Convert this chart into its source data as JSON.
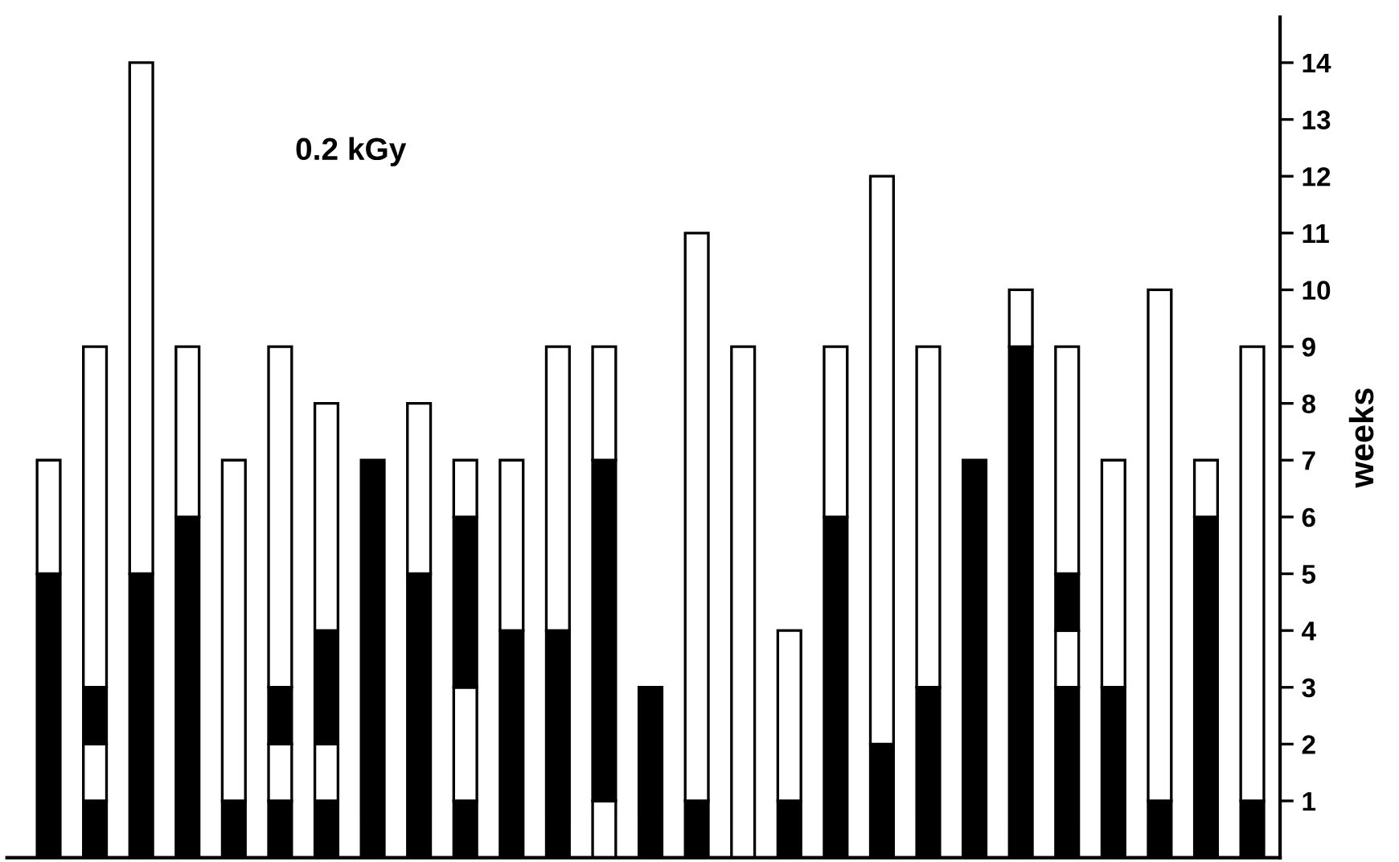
{
  "chart_data": {
    "type": "bar",
    "stacked": true,
    "categories": [
      null,
      null,
      null,
      null,
      null,
      null,
      null,
      null,
      null,
      null,
      null,
      null,
      null,
      null,
      null,
      null,
      null,
      null,
      null,
      null,
      null,
      null,
      null,
      null,
      null,
      null,
      null
    ],
    "series": [
      {
        "color": "#000000",
        "values": [
          5,
          1,
          5,
          6,
          1,
          1,
          1,
          7,
          5,
          1,
          4,
          4,
          null,
          3,
          1,
          null,
          1,
          6,
          2,
          3,
          7,
          9,
          3,
          3,
          1,
          6,
          1
        ]
      },
      {
        "color": "#ffffff",
        "values": [
          2,
          1,
          9,
          3,
          6,
          1,
          1,
          null,
          3,
          2,
          3,
          5,
          1,
          null,
          10,
          9,
          3,
          3,
          10,
          6,
          null,
          1,
          1,
          4,
          9,
          1,
          8
        ]
      },
      {
        "color": "#000000",
        "values": [
          null,
          1,
          null,
          null,
          null,
          1,
          2,
          null,
          null,
          3,
          null,
          null,
          6,
          null,
          null,
          null,
          null,
          null,
          null,
          null,
          null,
          null,
          1,
          null,
          null,
          null,
          null
        ]
      },
      {
        "color": "#ffffff",
        "values": [
          null,
          6,
          null,
          null,
          null,
          6,
          4,
          null,
          null,
          1,
          null,
          null,
          2,
          null,
          null,
          null,
          null,
          null,
          null,
          null,
          null,
          null,
          4,
          null,
          null,
          null,
          null
        ]
      }
    ],
    "ylabel": "weeks",
    "ylim": [
      0,
      14.8
    ],
    "yticks": [
      1,
      2,
      3,
      4,
      5,
      6,
      7,
      8,
      9,
      10,
      11,
      12,
      13,
      14
    ],
    "tick_labels": "y",
    "grid": false,
    "legend": false,
    "annotations": [
      "0.2 kGy"
    ]
  }
}
